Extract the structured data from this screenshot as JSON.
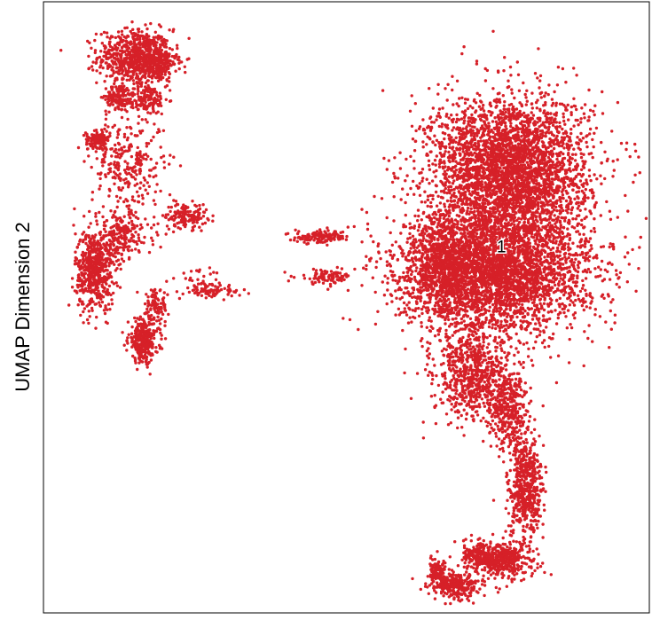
{
  "chart_data": {
    "type": "scatter",
    "title": "",
    "xlabel": "",
    "ylabel": "UMAP Dimension 2",
    "xlim": [
      0,
      100
    ],
    "ylim": [
      0,
      100
    ],
    "grid": false,
    "legend": "none",
    "point_color": "#d62028",
    "frame_color": "#000000",
    "series": [
      {
        "cluster_id": "1",
        "label_at": [
          75.6,
          59.7
        ],
        "regions": [
          {
            "cx": 15.0,
            "cy": 91.0,
            "rx": 6.0,
            "ry": 4.5,
            "n": 650
          },
          {
            "cx": 18.5,
            "cy": 90.0,
            "rx": 3.5,
            "ry": 3.0,
            "n": 250
          },
          {
            "cx": 17.0,
            "cy": 84.0,
            "rx": 3.5,
            "ry": 2.5,
            "n": 160
          },
          {
            "cx": 12.5,
            "cy": 84.5,
            "rx": 2.2,
            "ry": 2.0,
            "n": 120
          },
          {
            "cx": 9.0,
            "cy": 77.5,
            "rx": 2.0,
            "ry": 1.3,
            "n": 130
          },
          {
            "cx": 14.0,
            "cy": 73.5,
            "rx": 6.0,
            "ry": 8.0,
            "n": 280
          },
          {
            "cx": 23.5,
            "cy": 65.0,
            "rx": 3.5,
            "ry": 2.0,
            "n": 150
          },
          {
            "cx": 8.5,
            "cy": 56.0,
            "rx": 3.2,
            "ry": 6.5,
            "n": 550
          },
          {
            "cx": 13.0,
            "cy": 62.5,
            "rx": 5.0,
            "ry": 4.0,
            "n": 150
          },
          {
            "cx": 12.0,
            "cy": 60.0,
            "rx": 4.0,
            "ry": 3.0,
            "n": 90
          },
          {
            "cx": 16.5,
            "cy": 44.5,
            "rx": 2.5,
            "ry": 3.5,
            "n": 300
          },
          {
            "cx": 18.5,
            "cy": 50.0,
            "rx": 2.0,
            "ry": 3.0,
            "n": 100
          },
          {
            "cx": 26.0,
            "cy": 54.0,
            "rx": 4.0,
            "ry": 2.0,
            "n": 40
          },
          {
            "cx": 46.0,
            "cy": 61.5,
            "rx": 4.5,
            "ry": 1.0,
            "n": 130
          },
          {
            "cx": 46.5,
            "cy": 55.0,
            "rx": 4.5,
            "ry": 1.2,
            "n": 90
          },
          {
            "cx": 28.0,
            "cy": 52.5,
            "rx": 4.5,
            "ry": 0.9,
            "n": 70
          },
          {
            "cx": 77.0,
            "cy": 72.5,
            "rx": 13.0,
            "ry": 12.0,
            "n": 3400
          },
          {
            "cx": 74.5,
            "cy": 56.0,
            "rx": 15.5,
            "ry": 10.0,
            "n": 3600
          },
          {
            "cx": 66.0,
            "cy": 57.0,
            "rx": 5.0,
            "ry": 8.0,
            "n": 500
          },
          {
            "cx": 71.0,
            "cy": 39.0,
            "rx": 6.5,
            "ry": 7.5,
            "n": 700
          },
          {
            "cx": 77.0,
            "cy": 33.5,
            "rx": 3.0,
            "ry": 6.5,
            "n": 350
          },
          {
            "cx": 79.5,
            "cy": 20.0,
            "rx": 2.8,
            "ry": 9.0,
            "n": 550
          },
          {
            "cx": 76.0,
            "cy": 8.5,
            "rx": 5.0,
            "ry": 3.0,
            "n": 400
          },
          {
            "cx": 68.0,
            "cy": 4.5,
            "rx": 4.0,
            "ry": 2.2,
            "n": 300
          },
          {
            "cx": 72.0,
            "cy": 9.5,
            "rx": 4.0,
            "ry": 2.5,
            "n": 150
          },
          {
            "cx": 65.0,
            "cy": 7.0,
            "rx": 1.5,
            "ry": 1.8,
            "n": 100
          }
        ]
      }
    ]
  }
}
